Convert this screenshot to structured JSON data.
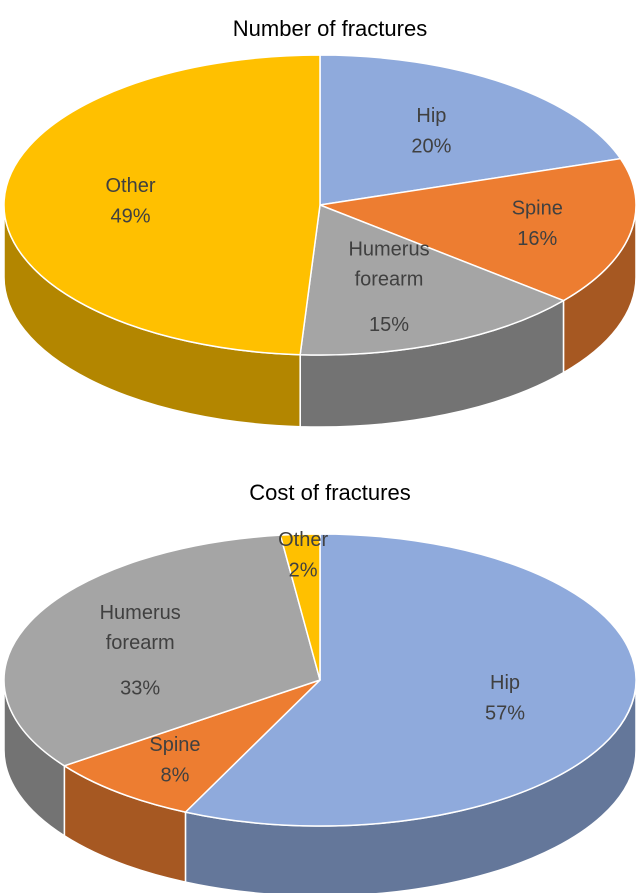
{
  "chart_data": [
    {
      "type": "pie",
      "title": "Number of fractures",
      "categories": [
        "Hip",
        "Spine",
        "Humerus forearm",
        "Other"
      ],
      "values": [
        20,
        16,
        15,
        49
      ],
      "value_labels": [
        "20%",
        "16%",
        "15%",
        "49%"
      ],
      "colors": [
        "#8faadc",
        "#ed7d31",
        "#a5a5a5",
        "#ffc000"
      ]
    },
    {
      "type": "pie",
      "title": "Cost of fractures",
      "categories": [
        "Hip",
        "Spine",
        "Humerus forearm",
        "Other"
      ],
      "values": [
        57,
        8,
        33,
        2
      ],
      "value_labels": [
        "57%",
        "8%",
        "33%",
        "2%"
      ],
      "colors": [
        "#8faadc",
        "#ed7d31",
        "#a5a5a5",
        "#ffc000"
      ]
    }
  ]
}
